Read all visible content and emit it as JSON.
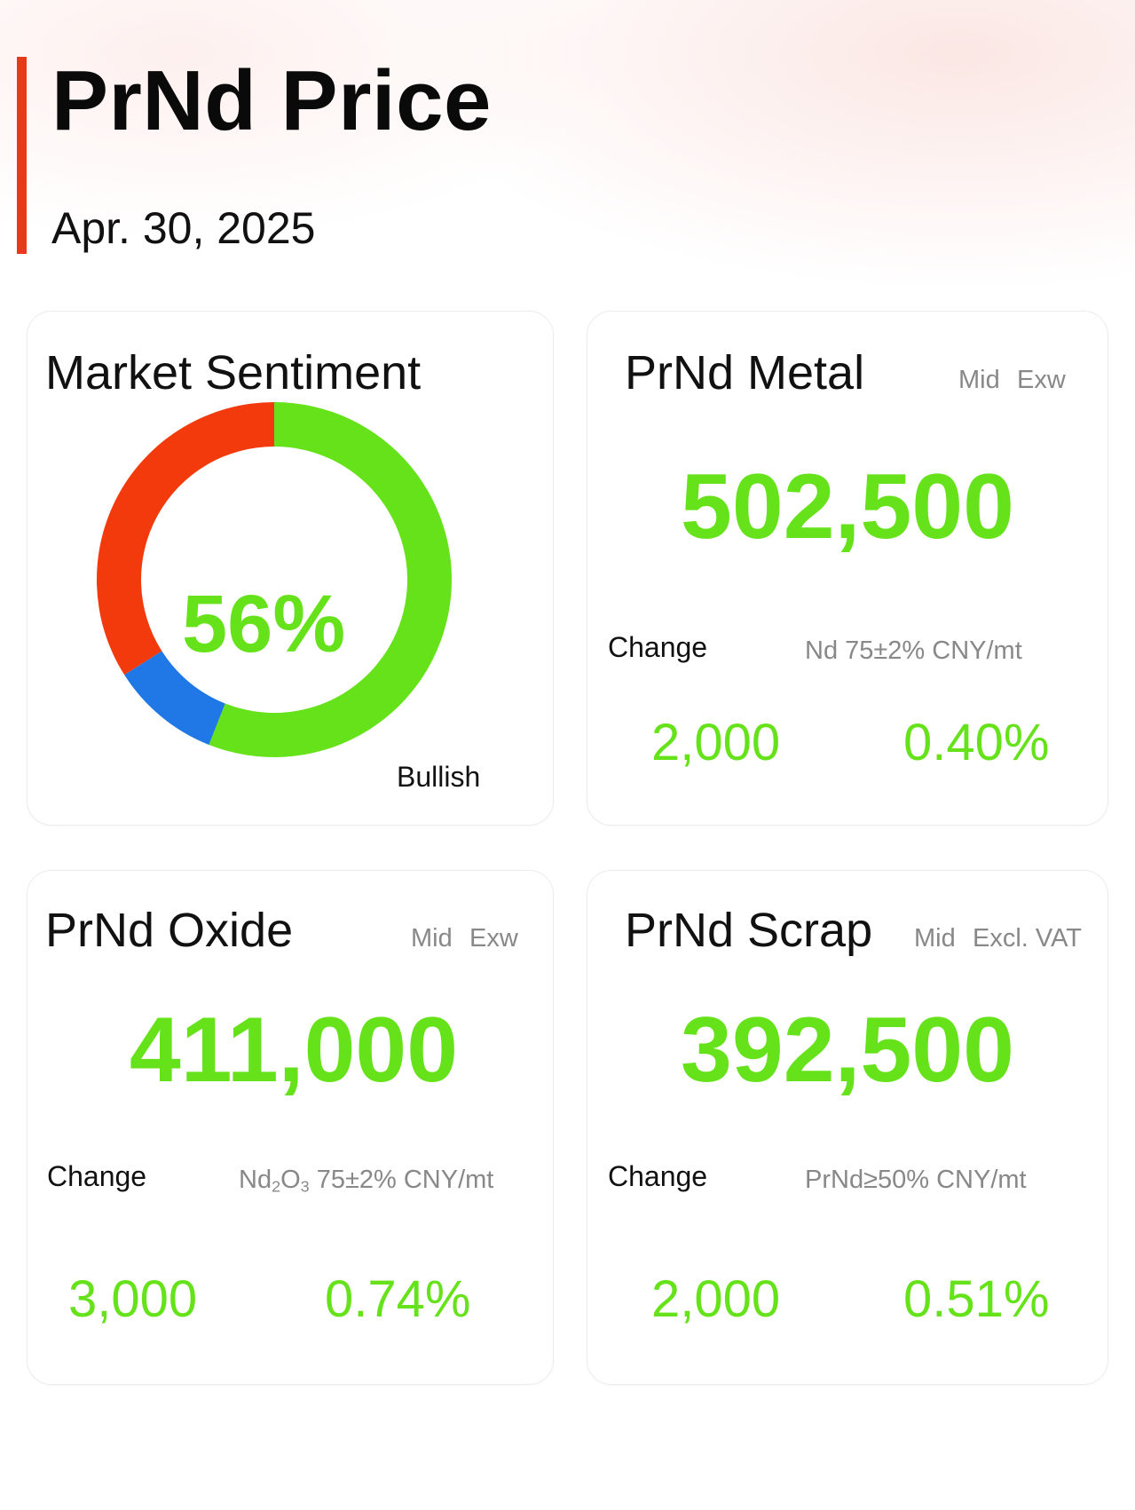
{
  "header": {
    "title": "PrNd Price",
    "date": "Apr. 30, 2025"
  },
  "sentiment": {
    "title": "Market Sentiment",
    "center_value": "56%",
    "label": "Bullish",
    "segments": [
      {
        "name": "bullish",
        "percent": 56,
        "color": "#66e21a"
      },
      {
        "name": "neutral",
        "percent": 10,
        "color": "#1f78e6"
      },
      {
        "name": "bearish",
        "percent": 34,
        "color": "#f33a0c"
      }
    ]
  },
  "metal": {
    "title": "PrNd Metal",
    "tag_1": "Mid",
    "tag_2": "Exw",
    "price": "502,500",
    "change_label": "Change",
    "spec": "Nd 75±2% CNY/mt",
    "change_abs": "2,000",
    "change_pct": "0.40%"
  },
  "oxide": {
    "title": "PrNd Oxide",
    "tag_1": "Mid",
    "tag_2": "Exw",
    "price": "411,000",
    "change_label": "Change",
    "spec_prefix": "Nd",
    "spec_sub_1": "2",
    "spec_mid": "O",
    "spec_sub_2": "3",
    "spec_suffix": " 75±2% CNY/mt",
    "change_abs": "3,000",
    "change_pct": "0.74%"
  },
  "scrap": {
    "title": "PrNd Scrap",
    "tag_1": "Mid",
    "tag_2": "Excl. VAT",
    "price": "392,500",
    "change_label": "Change",
    "spec": "PrNd≥50% CNY/mt",
    "change_abs": "2,000",
    "change_pct": "0.51%"
  },
  "colors": {
    "accent": "#e8391a",
    "positive": "#66e21a",
    "neutral": "#1f78e6",
    "negative": "#f33a0c"
  }
}
